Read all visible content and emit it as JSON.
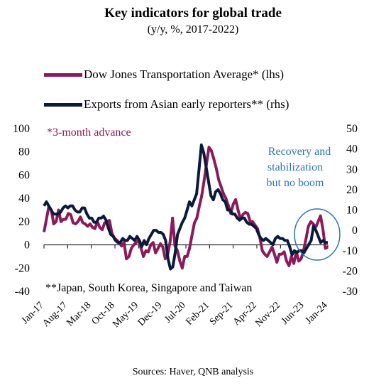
{
  "header": {
    "title": "Key indicators for global trade",
    "subtitle": "(y/y, %, 2017-2022)"
  },
  "source": "Sources: Haver, QNB analysis",
  "colors": {
    "djta": "#8B1A5A",
    "exports": "#0B1A3A",
    "annotation": "#2E75B6",
    "axis": "#000000"
  },
  "chart_data": {
    "type": "line",
    "title": "Key indicators for global trade",
    "subtitle": "(y/y, %, 2017-2022)",
    "x_tick_labels": [
      "Jan-17",
      "Aug-17",
      "Mar-18",
      "Oct-18",
      "May-19",
      "Dec-19",
      "Jul-20",
      "Feb-21",
      "Sep-21",
      "Apr-22",
      "Nov-22",
      "Jun-23",
      "Jan-24"
    ],
    "y_left": {
      "ticks": [
        "100",
        "80",
        "60",
        "40",
        "20",
        "0",
        "-20",
        "-40"
      ],
      "range": [
        -40,
        100
      ]
    },
    "y_right": {
      "ticks": [
        "50",
        "40",
        "30",
        "20",
        "10",
        "0",
        "-10",
        "-20",
        "-30"
      ],
      "range": [
        -30,
        50
      ]
    },
    "annotations": {
      "left_note": "*3-month advance",
      "bottom_note": "**Japan, South Korea, Singapore and Taiwan",
      "callout": [
        "Recovery and",
        "stabilization",
        "but no boom"
      ]
    },
    "series": [
      {
        "name": "Dow Jones Transportation Average* (lhs)",
        "axis": "left",
        "values": [
          11,
          22,
          33,
          30,
          18,
          20,
          30,
          20,
          22,
          22,
          27,
          26,
          19,
          18,
          20,
          24,
          19,
          18,
          16,
          18,
          15,
          14,
          20,
          15,
          13,
          19,
          20,
          21,
          10,
          6,
          4,
          2,
          -1,
          2,
          -12,
          -10,
          -3,
          0,
          2,
          4,
          -3,
          -10,
          -5,
          -6,
          0,
          2,
          -7,
          -3,
          1,
          -2,
          -12,
          -8,
          3,
          23,
          -1,
          -5,
          -14,
          -20,
          -10,
          -10,
          -3,
          8,
          19,
          23,
          33,
          42,
          55,
          70,
          84,
          81,
          74,
          66,
          56,
          50,
          44,
          40,
          34,
          27,
          35,
          39,
          30,
          22,
          26,
          28,
          27,
          20,
          20,
          17,
          14,
          6,
          -5,
          -8,
          -10,
          -6,
          -2,
          -8,
          -15,
          -8,
          -8,
          -6,
          -14,
          -18,
          -10,
          -16,
          -6,
          -14,
          -12,
          -5,
          5,
          16,
          20,
          18,
          15,
          20,
          25,
          13,
          -3,
          -2
        ]
      },
      {
        "name": "Exports from Asian early reporters** (rhs)",
        "axis": "right",
        "values": [
          12,
          14,
          12,
          10,
          8,
          8,
          8,
          9,
          11,
          12,
          11,
          12,
          12,
          10,
          9,
          9,
          11,
          11,
          8,
          6,
          6,
          4,
          4,
          6,
          6,
          7,
          5,
          1,
          -2,
          -3,
          -5,
          -6,
          -6,
          -4,
          -5,
          -5,
          -3,
          -4,
          -5,
          -3,
          -5,
          -8,
          -5,
          -7,
          -4,
          -2,
          0,
          0,
          -1,
          -1,
          -2,
          -5,
          -14,
          -19,
          -18,
          -11,
          -2,
          1,
          4,
          6,
          10,
          14,
          12,
          15,
          18,
          30,
          42,
          38,
          31,
          24,
          17,
          15,
          19,
          20,
          18,
          15,
          14,
          10,
          10,
          8,
          8,
          6,
          5,
          6,
          6,
          4,
          3,
          3,
          2,
          1,
          -2,
          -4,
          -5,
          -4,
          -5,
          -6,
          -7,
          -4,
          -3,
          -4,
          -4,
          -5,
          -5,
          -8,
          -12,
          -10,
          -11,
          -10,
          -10,
          -11,
          -9,
          -7,
          -5,
          2,
          0,
          -3,
          -6,
          -5,
          -6,
          -6
        ]
      }
    ]
  }
}
